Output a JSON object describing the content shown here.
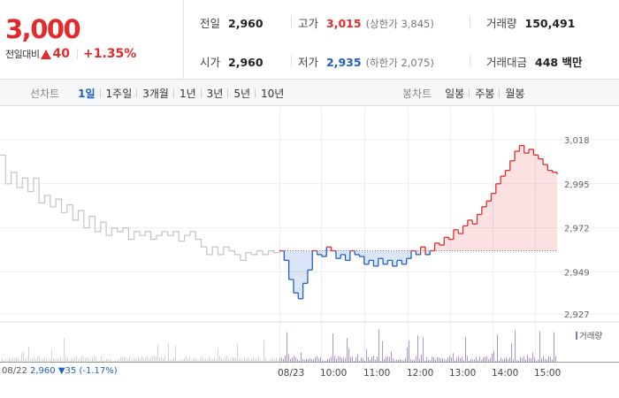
{
  "summary": {
    "current_price": "3,000",
    "change_label": "전일대비",
    "change_amount": "40",
    "change_rate": "+1.35%",
    "prev_close": {
      "label": "전일",
      "value": "2,960"
    },
    "open": {
      "label": "시가",
      "value": "2,960"
    },
    "high": {
      "label": "고가",
      "value": "3,015",
      "sub": "(상한가 3,845)"
    },
    "low": {
      "label": "저가",
      "value": "2,935",
      "sub": "(하한가 2,075)"
    },
    "volume": {
      "label": "거래량",
      "value": "150,491"
    },
    "trade_value": {
      "label": "거래대금",
      "value": "448 백만"
    }
  },
  "period_bar": {
    "line_title": "선차트",
    "line_periods": [
      "1일",
      "1주일",
      "3개월",
      "1년",
      "3년",
      "5년",
      "10년"
    ],
    "active_period": "1일",
    "candle_title": "봉차트",
    "candle_periods": [
      "일봉",
      "주봉",
      "월봉"
    ]
  },
  "chart_data": {
    "type": "line",
    "ylim": [
      2927,
      3018
    ],
    "yticks": [
      3018,
      2995,
      2972,
      2949,
      2927
    ],
    "baseline": 2960,
    "xtick_labels": [
      {
        "label": "08/22",
        "x": "08/22 09:00"
      },
      {
        "label": "08/23",
        "x": "08/23 09:00"
      },
      {
        "label": "10:00",
        "x": "08/23 10:00"
      },
      {
        "label": "11:00",
        "x": "08/23 11:00"
      },
      {
        "label": "12:00",
        "x": "08/23 12:00"
      },
      {
        "label": "13:00",
        "x": "08/23 13:00"
      },
      {
        "label": "14:00",
        "x": "08/23 14:00"
      },
      {
        "label": "15:00",
        "x": "08/23 15:00"
      }
    ],
    "prev_day_label": {
      "date": "08/22",
      "price": "2,960",
      "change": "▼35 (-1.17%)"
    },
    "volume_legend": "거래량",
    "series": [
      {
        "values_prev_day": [
          3010,
          2995,
          3001,
          2993,
          2998,
          2991,
          2998,
          2985,
          2989,
          2983,
          2987,
          2980,
          2984,
          2976,
          2981,
          2972,
          2978,
          2970,
          2975,
          2968,
          2972,
          2970,
          2972,
          2966,
          2970,
          2968,
          2970,
          2966,
          2968,
          2970,
          2968,
          2970,
          2965,
          2968,
          2970,
          2966,
          2962,
          2958,
          2962,
          2958,
          2962,
          2960,
          2958,
          2955,
          2959,
          2958,
          2960,
          2958,
          2960,
          2959,
          2960
        ],
        "values_today": [
          2960,
          2955,
          2945,
          2938,
          2935,
          2943,
          2950,
          2960,
          2958,
          2957,
          2962,
          2960,
          2956,
          2958,
          2955,
          2960,
          2958,
          2957,
          2953,
          2955,
          2952,
          2956,
          2953,
          2955,
          2952,
          2955,
          2953,
          2956,
          2960,
          2958,
          2962,
          2958,
          2960,
          2964,
          2963,
          2967,
          2966,
          2971,
          2969,
          2973,
          2976,
          2974,
          2979,
          2983,
          2986,
          2990,
          2995,
          2999,
          3002,
          3007,
          3012,
          3015,
          3011,
          3013,
          3010,
          3008,
          3005,
          3002,
          3001,
          3000
        ],
        "color_up": "#e02c2c",
        "color_down": "#1f5fc7",
        "color_prev": "#c4c4c4"
      }
    ]
  }
}
